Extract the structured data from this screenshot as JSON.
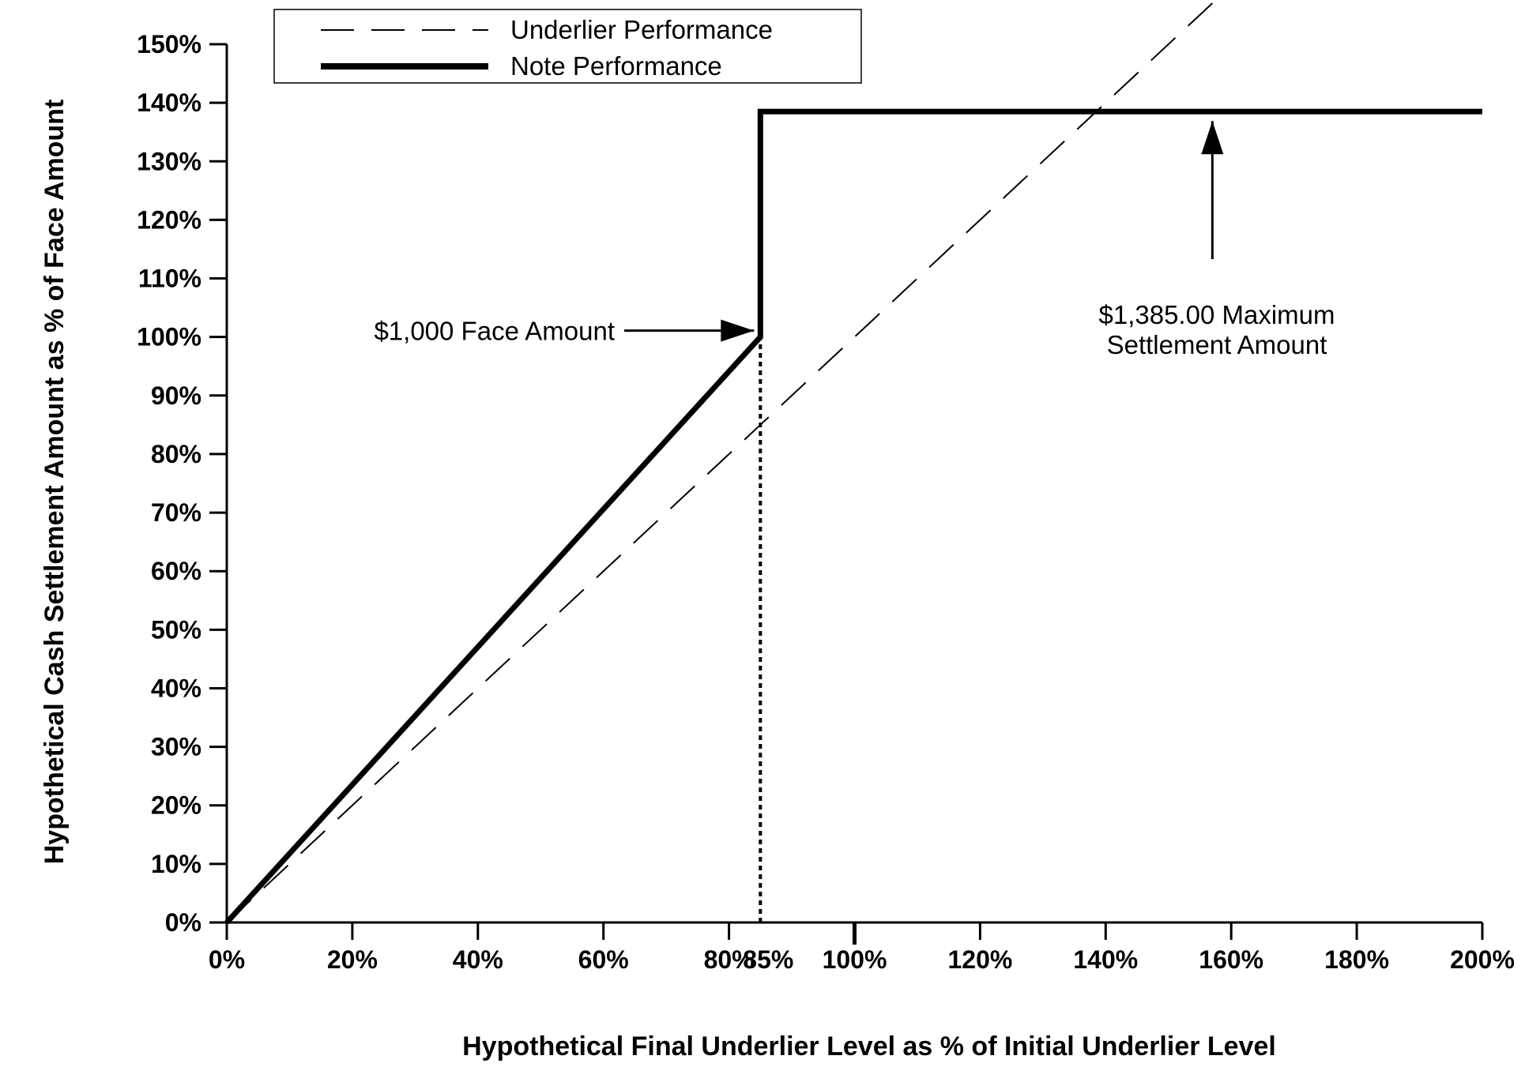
{
  "chart_data": {
    "type": "line",
    "title": "",
    "xlabel": "Hypothetical Final Underlier Level as % of Initial Underlier Level",
    "ylabel": "Hypothetical Cash Settlement Amount as % of Face Amount",
    "xlim": [
      0,
      200
    ],
    "ylim": [
      0,
      150
    ],
    "x_ticks": [
      0,
      20,
      40,
      60,
      80,
      100,
      120,
      140,
      160,
      180,
      200
    ],
    "x_tick_labels": [
      "0%",
      "20%",
      "40%",
      "60%",
      "80%",
      "100%",
      "120%",
      "140%",
      "160%",
      "180%",
      "200%"
    ],
    "x_extra_tick": {
      "value": 85,
      "label": "85%"
    },
    "y_ticks": [
      0,
      10,
      20,
      30,
      40,
      50,
      60,
      70,
      80,
      90,
      100,
      110,
      120,
      130,
      140,
      150
    ],
    "y_tick_labels": [
      "0%",
      "10%",
      "20%",
      "30%",
      "40%",
      "50%",
      "60%",
      "70%",
      "80%",
      "90%",
      "100%",
      "110%",
      "120%",
      "130%",
      "140%",
      "150%"
    ],
    "grid": false,
    "legend_position": "top-left",
    "series": [
      {
        "name": "Underlier Performance",
        "style": "dashed",
        "x": [
          0,
          200
        ],
        "y": [
          0,
          200
        ]
      },
      {
        "name": "Note Performance",
        "style": "solid-thick",
        "x": [
          0,
          85,
          85,
          200
        ],
        "y": [
          0,
          100,
          138.5,
          138.5
        ]
      }
    ],
    "reference_lines": [
      {
        "type": "vertical",
        "x": 85,
        "y_from": 0,
        "y_to": 138.5,
        "style": "dotted"
      }
    ],
    "annotations": [
      {
        "lines": [
          "$1,000 Face Amount"
        ],
        "arrow_to": {
          "x": 85,
          "y": 100
        }
      },
      {
        "lines": [
          "$1,385.00 Maximum",
          "Settlement Amount"
        ],
        "arrow_to": {
          "x": 157,
          "y": 138.5
        }
      }
    ]
  }
}
